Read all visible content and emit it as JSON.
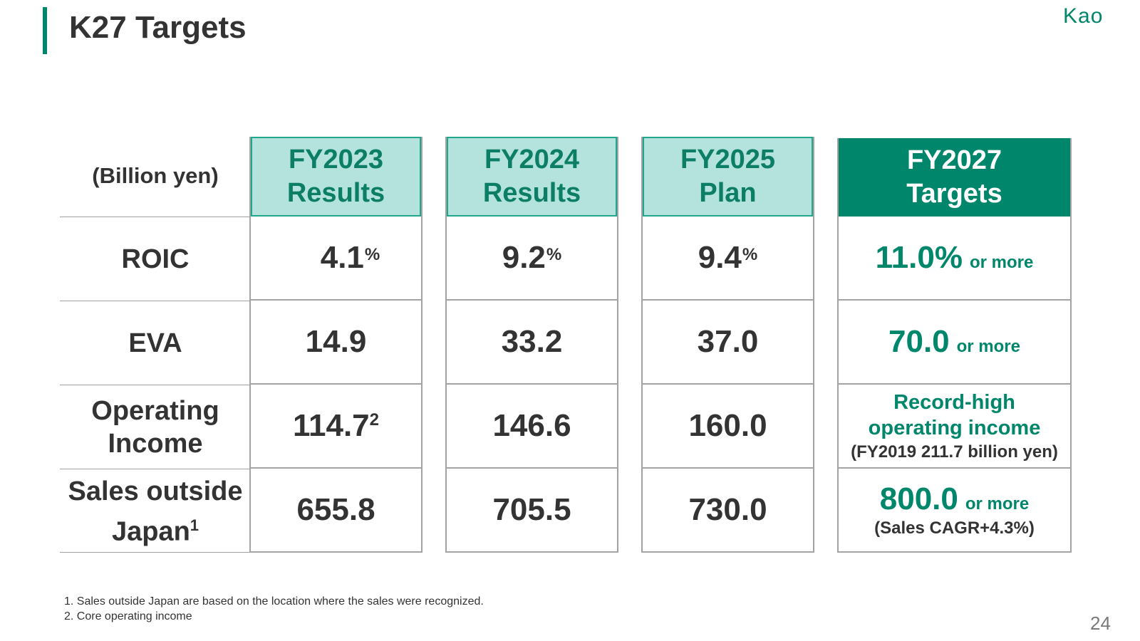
{
  "header": {
    "title": "K27 Targets",
    "logo_text": "Kao"
  },
  "table": {
    "unit_label": "(Billion yen)",
    "row_labels": {
      "roic": "ROIC",
      "eva": "EVA",
      "op_income_line1": "Operating",
      "op_income_line2": "Income",
      "sales_line1": "Sales outside",
      "sales_line2": "Japan",
      "sales_sup": "1"
    },
    "columns": [
      {
        "head1": "FY2023",
        "head2": "Results",
        "roic": "4.1",
        "roic_unit": "%",
        "eva": "14.9",
        "op_income": "114.7",
        "op_income_sup": "2",
        "sales": "655.8"
      },
      {
        "head1": "FY2024",
        "head2": "Results",
        "roic": "9.2",
        "roic_unit": "%",
        "eva": "33.2",
        "op_income": "146.6",
        "sales": "705.5"
      },
      {
        "head1": "FY2025",
        "head2": "Plan",
        "roic": "9.4",
        "roic_unit": "%",
        "eva": "37.0",
        "op_income": "160.0",
        "sales": "730.0"
      }
    ],
    "target": {
      "head1": "FY2027",
      "head2": "Targets",
      "roic": "11.0%",
      "roic_suffix": "or more",
      "eva": "70.0",
      "eva_suffix": "or more",
      "op_income_line1": "Record-high",
      "op_income_line2": "operating income",
      "op_income_note": "(FY2019 211.7 billion yen)",
      "sales": "800.0",
      "sales_suffix": "or more",
      "sales_note": "(Sales CAGR+4.3%)"
    }
  },
  "footnotes": {
    "note1": "1. Sales outside Japan are based on the location where the sales were recognized.",
    "note2": "2. Core operating income"
  },
  "page_number": "24",
  "colors": {
    "accent": "#00876b",
    "header_fill": "#b3e3dc"
  }
}
